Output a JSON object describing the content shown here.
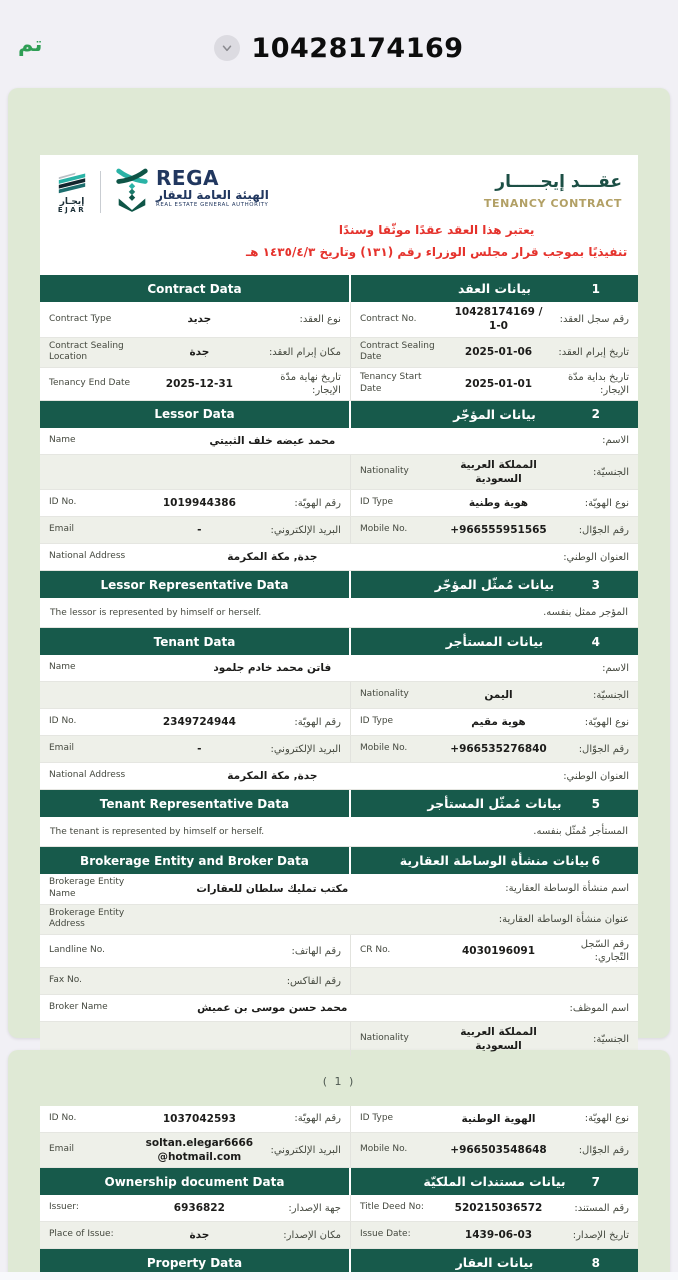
{
  "topbar": {
    "done_label": "تم",
    "title": "10428174169"
  },
  "header": {
    "ejar_logo_ar": "إيجـار",
    "ejar_logo_en": "EJAR",
    "rega_title": "REGA",
    "rega_subtitle_ar": "الهيئة العامة للعقار",
    "rega_subtitle_en": "REAL ESTATE GENERAL AUTHORITY",
    "doc_title_ar": "عقـــد إيجـــــار",
    "doc_title_en": "TENANCY CONTRACT",
    "disclaimer_line1": "يعتبر هذا العقد عقدًا موثّقا وسندًا",
    "disclaimer_line2": "تنفيذيًا بموجب قرار مجلس الوزراء رقم (١٣١) وتاريخ ١٤٣٥/٤/٣ هـ"
  },
  "page1": {
    "page_number": "( 1 )",
    "sections": [
      {
        "num": "1",
        "title_ar": "بيانات العقد",
        "title_en": "Contract Data",
        "rows": [
          {
            "type": "pair",
            "shade": false,
            "left": {
              "en": "Contract Type",
              "value": "جديد",
              "ar": "نوع العقد:"
            },
            "right": {
              "en": "Contract No.",
              "value": "10428174169 / 1-0",
              "ar": "رقم سجل العقد:"
            }
          },
          {
            "type": "pair",
            "shade": true,
            "left": {
              "en": "Contract Sealing Location",
              "value": "جدة",
              "ar": "مكان إبرام العقد:"
            },
            "right": {
              "en": "Contract Sealing Date",
              "value": "2025-01-06",
              "ar": "تاريخ إبرام العقد:"
            }
          },
          {
            "type": "pair",
            "shade": false,
            "left": {
              "en": "Tenancy End Date",
              "value": "2025-12-31",
              "ar": "تاريخ نهاية مدّة الإيجار:"
            },
            "right": {
              "en": "Tenancy Start Date",
              "value": "2025-01-01",
              "ar": "تاريخ بداية مدّة الإيجار:"
            }
          }
        ]
      },
      {
        "num": "2",
        "title_ar": "بيانات المؤجّر",
        "title_en": "Lessor Data",
        "rows": [
          {
            "type": "full",
            "shade": false,
            "cell": {
              "en": "Name",
              "value": "محمد عيضه خلف الثبيتي",
              "ar": "الاسم:"
            }
          },
          {
            "type": "right",
            "shade": true,
            "cell": {
              "en": "Nationality",
              "value": "المملكة العربية السعودية",
              "ar": "الجنسيّة:"
            }
          },
          {
            "type": "pair",
            "shade": false,
            "left": {
              "en": "ID No.",
              "value": "1019944386",
              "ar": "رقم الهويّة:"
            },
            "right": {
              "en": "ID Type",
              "value": "هوية وطنية",
              "ar": "نوع الهويّة:"
            }
          },
          {
            "type": "pair",
            "shade": true,
            "left": {
              "en": "Email",
              "value": "-",
              "ar": "البريد الإلكتروني:"
            },
            "right": {
              "en": "Mobile No.",
              "value": "+966555951565",
              "ar": "رقم الجوّال:"
            }
          },
          {
            "type": "full",
            "shade": false,
            "cell": {
              "en": "National Address",
              "value": "جدة, مكة المكرمة",
              "ar": "العنوان الوطني:"
            }
          }
        ]
      },
      {
        "num": "3",
        "title_ar": "بيانات مُمثّل المؤجّر",
        "title_en": "Lessor Representative Data",
        "rows": [
          {
            "type": "text",
            "shade": false,
            "en": "The lessor is represented by himself or herself.",
            "ar": "المؤجر ممثل بنفسه."
          }
        ]
      },
      {
        "num": "4",
        "title_ar": "بيانات المستأجر",
        "title_en": "Tenant Data",
        "rows": [
          {
            "type": "full",
            "shade": false,
            "cell": {
              "en": "Name",
              "value": "فاتن محمد خادم جلمود",
              "ar": "الاسم:"
            }
          },
          {
            "type": "right",
            "shade": true,
            "cell": {
              "en": "Nationality",
              "value": "اليمن",
              "ar": "الجنسيّة:"
            }
          },
          {
            "type": "pair",
            "shade": false,
            "left": {
              "en": "ID No.",
              "value": "2349724944",
              "ar": "رقم الهويّة:"
            },
            "right": {
              "en": "ID Type",
              "value": "هوية مقيم",
              "ar": "نوع الهويّة:"
            }
          },
          {
            "type": "pair",
            "shade": true,
            "left": {
              "en": "Email",
              "value": "-",
              "ar": "البريد الإلكتروني:"
            },
            "right": {
              "en": "Mobile No.",
              "value": "+966535276840",
              "ar": "رقم الجوّال:"
            }
          },
          {
            "type": "full",
            "shade": false,
            "cell": {
              "en": "National Address",
              "value": "جدة, مكة المكرمة",
              "ar": "العنوان الوطني:"
            }
          }
        ]
      },
      {
        "num": "5",
        "title_ar": "بيانات مُمثّل المستأجر",
        "title_en": "Tenant Representative Data",
        "rows": [
          {
            "type": "text",
            "shade": false,
            "en": "The tenant is represented by himself or herself.",
            "ar": "المستأجر مُمثّل بنفسه."
          }
        ]
      },
      {
        "num": "6",
        "title_ar": "بيانات منشأة الوساطة العقارية",
        "title_en": "Brokerage Entity and Broker Data",
        "rows": [
          {
            "type": "full",
            "shade": false,
            "cell": {
              "en": "Brokerage Entity Name",
              "value": "مكتب تمليك سلطان للعقارات",
              "ar": "اسم منشأة الوساطة العقارية:"
            }
          },
          {
            "type": "full",
            "shade": true,
            "cell": {
              "en": "Brokerage Entity Address",
              "value": "",
              "ar": "عنوان منشأة الوساطة العقارية:"
            }
          },
          {
            "type": "pair",
            "shade": false,
            "left": {
              "en": "Landline No.",
              "value": "",
              "ar": "رقم الهاتف:"
            },
            "right": {
              "en": "CR No.",
              "value": "4030196091",
              "ar": "رقم السّجل التّجاري:"
            }
          },
          {
            "type": "left",
            "shade": true,
            "cell": {
              "en": "Fax No.",
              "value": "",
              "ar": "رقم الفاكس:"
            }
          },
          {
            "type": "full",
            "shade": false,
            "cell": {
              "en": "Broker Name",
              "value": "محمد حسن موسى بن عميش",
              "ar": "اسم الموظف:"
            }
          },
          {
            "type": "right",
            "shade": true,
            "cell": {
              "en": "Nationality",
              "value": "المملكة العربية السعودية",
              "ar": "الجنسيّة:"
            }
          }
        ]
      }
    ]
  },
  "page2": {
    "sections": [
      {
        "rows": [
          {
            "type": "pair",
            "shade": false,
            "left": {
              "en": "ID No.",
              "value": "1037042593",
              "ar": "رقم الهويّة:"
            },
            "right": {
              "en": "ID Type",
              "value": "الهوية الوطنية",
              "ar": "نوع الهويّة:"
            }
          },
          {
            "type": "pair",
            "shade": true,
            "left": {
              "en": "Email",
              "value": "soltan.elegar6666@hotmail.com",
              "ar": "البريد الإلكتروني:"
            },
            "right": {
              "en": "Mobile No.",
              "value": "+966503548648",
              "ar": "رقم الجوّال:"
            }
          }
        ]
      },
      {
        "num": "7",
        "title_ar": "بيانات مستندات الملكيّة",
        "title_en": "Ownership document Data",
        "rows": [
          {
            "type": "pair",
            "shade": false,
            "left": {
              "en": "Issuer:",
              "value": "6936822",
              "ar": "جهة الإصدار:"
            },
            "right": {
              "en": "Title Deed No:",
              "value": "520215036572",
              "ar": "رقم المستند:"
            }
          },
          {
            "type": "pair",
            "shade": true,
            "left": {
              "en": "Place of Issue:",
              "value": "جدة",
              "ar": "مكان الإصدار:"
            },
            "right": {
              "en": "Issue Date:",
              "value": "1439-06-03",
              "ar": "تاريخ الإصدار:"
            }
          }
        ]
      },
      {
        "num": "8",
        "title_ar": "بيانات العقار",
        "title_en": "Property Data",
        "rows": []
      }
    ]
  }
}
